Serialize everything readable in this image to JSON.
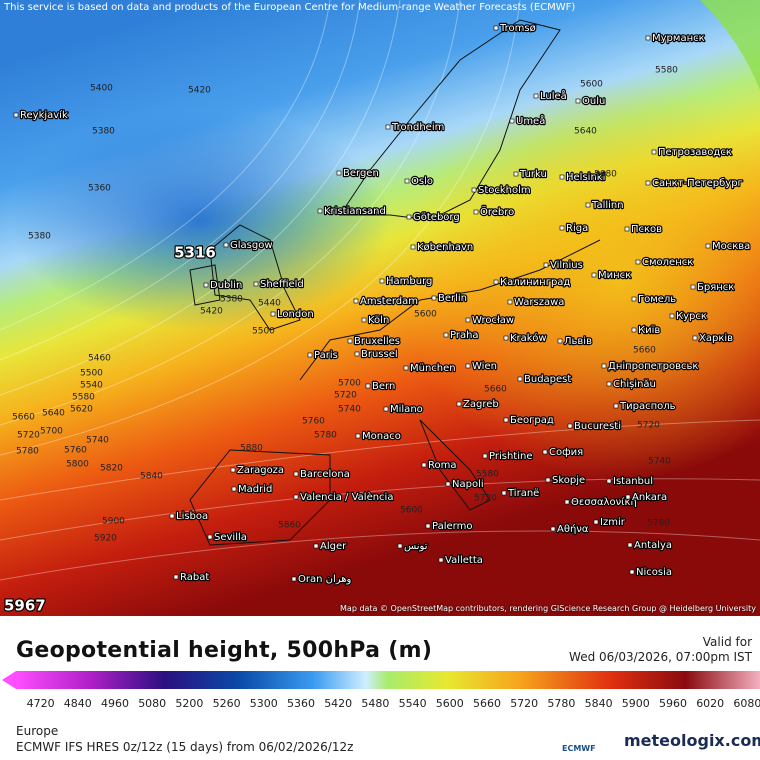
{
  "header": {
    "notice": "This service is based on data and products of the European Centre for Medium-range Weather Forecasts (ECMWF)",
    "attribution": "Map data © OpenStreetMap contributors, rendering GIScience Research Group @ Heidelberg University"
  },
  "map": {
    "cities": [
      "Reykjavík",
      "Tromsø",
      "Мурманск",
      "Luleå",
      "Oulu",
      "Trondheim",
      "Umeå",
      "Петрозаводск",
      "Bergen",
      "Turku",
      "Helsinki",
      "Санкт-Петербург",
      "Oslo",
      "Stockholm",
      "Tallinn",
      "Kristiansand",
      "Örebro",
      "Göteborg",
      "Псков",
      "Riga",
      "Glasgow",
      "København",
      "Москва",
      "Vilnius",
      "Минск",
      "Смоленск",
      "Hamburg",
      "Калининград",
      "Брянск",
      "Sheffield",
      "Dublin",
      "Berlin",
      "Amsterdam",
      "Гомель",
      "Warszawa",
      "London",
      "Курск",
      "Köln",
      "Wrocław",
      "Київ",
      "Praha",
      "Kraków",
      "Львів",
      "Харків",
      "Bruxelles",
      "Brussel",
      "Paris",
      "München",
      "Wien",
      "Дніпропетровськ",
      "Chișinău",
      "Bern",
      "Budapest",
      "Zagreb",
      "Тирасполь",
      "Milano",
      "Београд",
      "Bucuresti",
      "Monaco",
      "София",
      "Prishtine",
      "Roma",
      "Skopje",
      "Istanbul",
      "Zaragoza",
      "Barcelona",
      "Napoli",
      "Tiranë",
      "Θεσσαλονίκη",
      "Ankara",
      "Madrid",
      "Valencia / València",
      "Izmir",
      "Lisboa",
      "Palermo",
      "Αθήνα",
      "Sevilla",
      "Alger",
      "تونس",
      "Antalya",
      "Valletta",
      "Nicosia",
      "Rabat",
      "Oran وهران"
    ],
    "contour_labels": [
      5400,
      5420,
      5380,
      5360,
      5380,
      5380,
      5440,
      5420,
      5500,
      5460,
      5500,
      5540,
      5580,
      5600,
      5620,
      5640,
      5660,
      5700,
      5720,
      5740,
      5760,
      5780,
      5800,
      5820,
      5840,
      5900,
      5920,
      5880,
      5760,
      5780,
      5700,
      5720,
      5740,
      5660,
      5600,
      5580,
      5640,
      5680,
      5660,
      5720,
      5740,
      5780,
      5860,
      5600,
      5580,
      5720
    ],
    "minimum": 5316,
    "maximum": 5967
  },
  "legend": {
    "title": "Geopotential height, 500hPa (m)",
    "valid_label": "Valid for",
    "valid_time": "Wed 06/03/2026, 07:00pm IST",
    "ticks": [
      4720,
      4840,
      4960,
      5080,
      5200,
      5260,
      5300,
      5360,
      5420,
      5480,
      5540,
      5600,
      5660,
      5720,
      5780,
      5840,
      5900,
      5960,
      6020,
      6080
    ]
  },
  "footer": {
    "region": "Europe",
    "model": "ECMWF IFS HRES 0z/12z (15 days) from 06/02/2026/12z",
    "ecmwf_logo": "ECMWF",
    "brand": "meteologix.com"
  }
}
